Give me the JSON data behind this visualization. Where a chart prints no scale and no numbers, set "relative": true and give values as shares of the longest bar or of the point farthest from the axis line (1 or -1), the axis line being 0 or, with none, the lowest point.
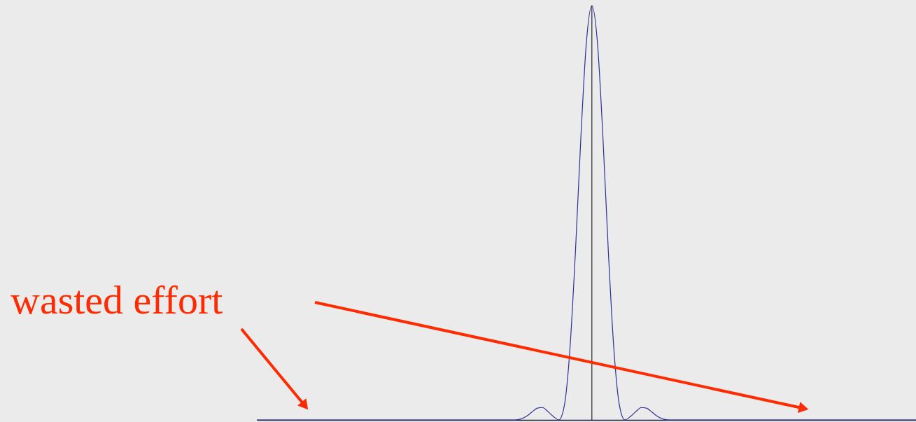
{
  "chart_data": {
    "type": "line",
    "relative": true,
    "color": "#2e2e9a",
    "categories": [
      null,
      null,
      null,
      null,
      null,
      null,
      null,
      null,
      null,
      null,
      null,
      null,
      null,
      null,
      null,
      null,
      null,
      null,
      null,
      null,
      null,
      null,
      null,
      null,
      null,
      null,
      null,
      null,
      null,
      null,
      null,
      null,
      null,
      null,
      null,
      null,
      null,
      null,
      null,
      null,
      null,
      null,
      null,
      null,
      null,
      null,
      null,
      null,
      null,
      null,
      null,
      null,
      null,
      null,
      null,
      null,
      null,
      null,
      null,
      null,
      null,
      null,
      null,
      null,
      null,
      null,
      null,
      null,
      null,
      null,
      null,
      null,
      null,
      null,
      null,
      null,
      null,
      null,
      null,
      null,
      null,
      null,
      null,
      null,
      null,
      null,
      null,
      null,
      null,
      null,
      null,
      null,
      null,
      null,
      null,
      null,
      null,
      null,
      null,
      null,
      null,
      null,
      null,
      null,
      null,
      null,
      null,
      null,
      null,
      null,
      null,
      null,
      null,
      null,
      null,
      null,
      null,
      null,
      null,
      null,
      null
    ],
    "values": [
      0,
      0,
      0,
      0,
      0,
      0,
      0,
      0,
      0,
      0,
      0,
      0,
      0,
      0,
      0,
      0,
      0,
      0,
      0,
      0,
      0,
      0,
      0,
      0,
      0,
      0,
      0,
      0,
      0,
      0,
      0,
      0,
      0,
      0,
      0,
      0,
      0,
      0,
      0,
      0,
      0,
      0,
      0,
      0,
      0,
      0,
      0,
      0,
      0.002,
      0.008,
      0.018,
      0.028,
      0.03,
      0.02,
      0.008,
      0,
      0.036,
      0.171,
      0.405,
      0.684,
      0.912,
      1,
      0.912,
      0.684,
      0.405,
      0.171,
      0.036,
      0,
      0.008,
      0.02,
      0.03,
      0.028,
      0.018,
      0.008,
      0.002,
      0,
      0,
      0,
      0,
      0,
      0,
      0,
      0,
      0,
      0,
      0,
      0,
      0,
      0,
      0,
      0,
      0,
      0,
      0,
      0,
      0,
      0,
      0,
      0,
      0,
      0,
      0,
      0,
      0,
      0,
      0,
      0,
      0,
      0,
      0,
      0,
      0,
      0,
      0,
      0,
      0,
      0,
      0,
      0,
      0,
      0
    ],
    "ref_lines": [
      {
        "axis": "x",
        "value": null,
        "color": "#000000"
      }
    ],
    "annotations": [
      "wasted effort"
    ]
  }
}
